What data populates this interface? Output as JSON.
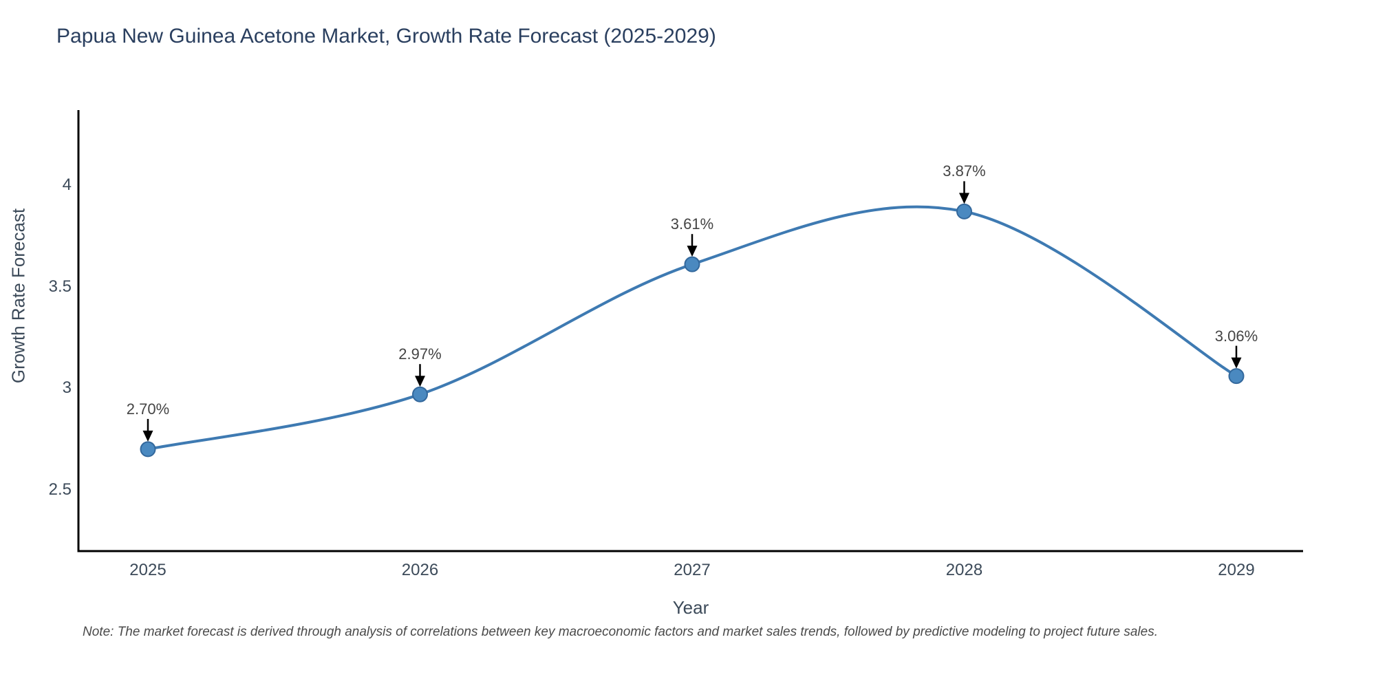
{
  "title": "Papua New Guinea Acetone Market, Growth Rate Forecast (2025-2029)",
  "note": "Note: The market forecast is derived through analysis of correlations between key macroeconomic factors and market sales trends, followed by predictive modeling to project future sales.",
  "chart_data": {
    "type": "line",
    "title": "Papua New Guinea Acetone Market, Growth Rate Forecast (2025-2029)",
    "xlabel": "Year",
    "ylabel": "Growth Rate Forecast",
    "x": [
      2025,
      2026,
      2027,
      2028,
      2029
    ],
    "x_tick_labels": [
      "2025",
      "2026",
      "2027",
      "2028",
      "2029"
    ],
    "values": [
      2.7,
      2.97,
      3.61,
      3.87,
      3.06
    ],
    "point_labels": [
      "2.70%",
      "2.97%",
      "3.61%",
      "3.87%",
      "3.06%"
    ],
    "y_ticks": [
      4,
      3.5,
      3,
      2.5
    ],
    "y_tick_labels": [
      "4",
      "3.5",
      "3",
      "2.5"
    ],
    "ylim": [
      2.2,
      4.4
    ],
    "grid": false,
    "legend": "none",
    "line_shape": "spline",
    "annotation_arrows": "black downward arrows from each value label to its marker",
    "colors": {
      "line": "#3e7ab2",
      "marker_fill": "#4a89c0",
      "marker_edge": "#33689c",
      "axis_line": "#000000",
      "title_text": "#2a3f5f",
      "tick_text": "#3c4a59",
      "annotation_text": "#444444",
      "note_text": "#4a4a4a"
    }
  }
}
